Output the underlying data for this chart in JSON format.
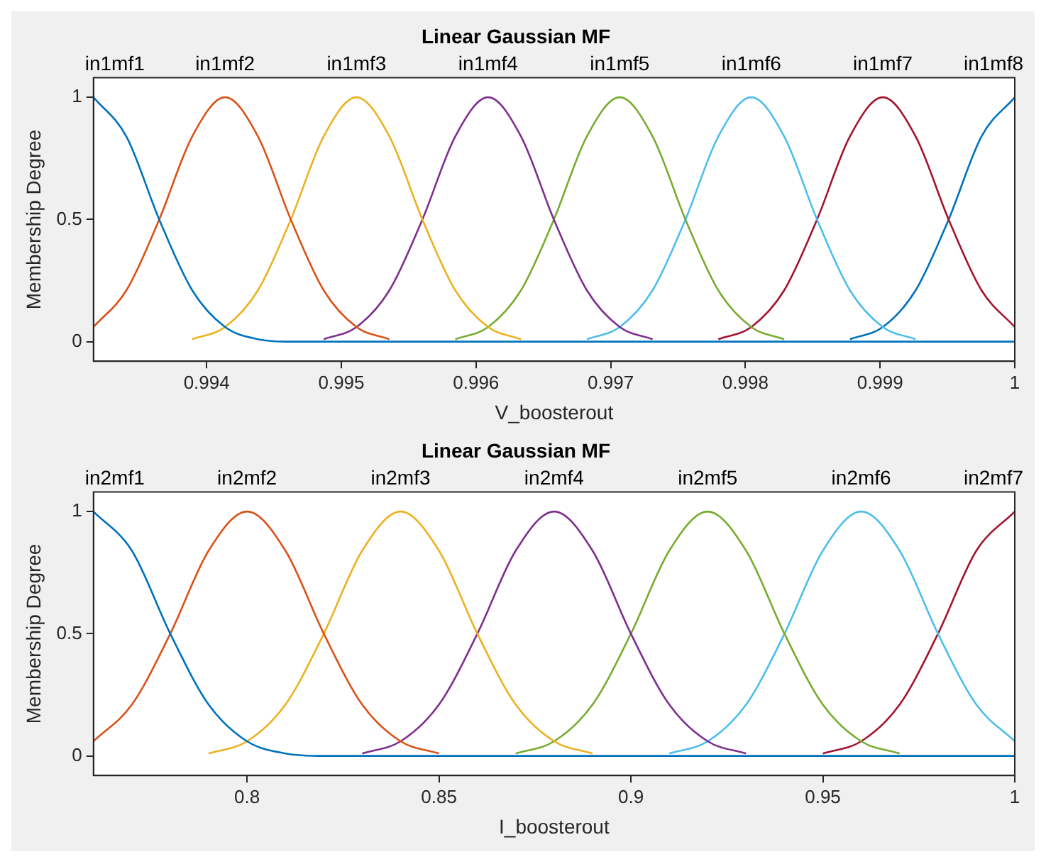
{
  "chart_data": [
    {
      "type": "line",
      "title": "Linear Gaussian MF",
      "xlabel": "V_boosterout",
      "ylabel": "Membership Degree",
      "xlim": [
        0.99316,
        1
      ],
      "xticks": [
        0.994,
        0.995,
        0.996,
        0.997,
        0.998,
        0.999,
        1
      ],
      "ylim": [
        -0.08,
        1.08
      ],
      "yticks": [
        0,
        0.5,
        1
      ],
      "grid": false,
      "legend": false,
      "marker": "none",
      "line_style": "solid",
      "x": [
        0.99316,
        0.993404,
        0.993648,
        0.993893,
        0.994137,
        0.994381,
        0.994625,
        0.994869,
        0.995113,
        0.995357,
        0.995602,
        0.995846,
        0.99609,
        0.996334,
        0.996578,
        0.996823,
        0.997067,
        0.997311,
        0.997555,
        0.997799,
        0.998044,
        0.998288,
        0.998532,
        0.998776,
        0.99902,
        0.999264,
        0.999509,
        0.999753,
        1
      ],
      "series": [
        {
          "name": "in1mf1",
          "color": "#0072bd",
          "values": [
            1,
            0.84,
            0.5,
            0.21,
            0.06,
            0.01,
            0,
            0,
            0,
            0,
            0,
            0,
            0,
            0,
            0,
            0,
            0,
            0,
            0,
            0,
            0,
            0,
            0,
            0,
            0,
            0,
            0,
            0,
            0
          ]
        },
        {
          "name": "in1mf2",
          "color": "#d95319",
          "values": [
            0.06,
            0.21,
            0.5,
            0.84,
            1,
            0.84,
            0.5,
            0.21,
            0.06,
            0.01,
            null,
            null,
            null,
            null,
            null,
            null,
            null,
            null,
            null,
            null,
            null,
            null,
            null,
            null,
            null,
            null,
            null,
            null,
            null
          ]
        },
        {
          "name": "in1mf3",
          "color": "#edb120",
          "values": [
            null,
            null,
            null,
            0.01,
            0.06,
            0.21,
            0.5,
            0.84,
            1,
            0.84,
            0.5,
            0.21,
            0.06,
            0.01,
            null,
            null,
            null,
            null,
            null,
            null,
            null,
            null,
            null,
            null,
            null,
            null,
            null,
            null,
            null
          ]
        },
        {
          "name": "in1mf4",
          "color": "#7e2f8e",
          "values": [
            null,
            null,
            null,
            null,
            null,
            null,
            null,
            0.01,
            0.06,
            0.21,
            0.5,
            0.84,
            1,
            0.84,
            0.5,
            0.21,
            0.06,
            0.01,
            null,
            null,
            null,
            null,
            null,
            null,
            null,
            null,
            null,
            null,
            null
          ]
        },
        {
          "name": "in1mf5",
          "color": "#77ac30",
          "values": [
            null,
            null,
            null,
            null,
            null,
            null,
            null,
            null,
            null,
            null,
            null,
            0.01,
            0.06,
            0.21,
            0.5,
            0.84,
            1,
            0.84,
            0.5,
            0.21,
            0.06,
            0.01,
            null,
            null,
            null,
            null,
            null,
            null,
            null
          ]
        },
        {
          "name": "in1mf6",
          "color": "#4dbeee",
          "values": [
            null,
            null,
            null,
            null,
            null,
            null,
            null,
            null,
            null,
            null,
            null,
            null,
            null,
            null,
            null,
            0.01,
            0.06,
            0.21,
            0.5,
            0.84,
            1,
            0.84,
            0.5,
            0.21,
            0.06,
            0.01,
            null,
            null,
            null
          ]
        },
        {
          "name": "in1mf7",
          "color": "#a2142f",
          "values": [
            null,
            null,
            null,
            null,
            null,
            null,
            null,
            null,
            null,
            null,
            null,
            null,
            null,
            null,
            null,
            null,
            null,
            null,
            null,
            0.01,
            0.06,
            0.21,
            0.5,
            0.84,
            1,
            0.84,
            0.5,
            0.21,
            0.06
          ]
        },
        {
          "name": "in1mf8",
          "color": "#0072bd",
          "values": [
            null,
            null,
            null,
            null,
            null,
            null,
            null,
            null,
            null,
            null,
            null,
            null,
            null,
            null,
            null,
            null,
            null,
            null,
            null,
            null,
            null,
            null,
            null,
            0.01,
            0.06,
            0.21,
            0.5,
            0.84,
            1
          ]
        }
      ]
    },
    {
      "type": "line",
      "title": "Linear Gaussian MF",
      "xlabel": "I_boosterout",
      "ylabel": "Membership Degree",
      "xlim": [
        0.76,
        1
      ],
      "xticks": [
        0.8,
        0.85,
        0.9,
        0.95,
        1
      ],
      "ylim": [
        -0.08,
        1.08
      ],
      "yticks": [
        0,
        0.5,
        1
      ],
      "grid": false,
      "legend": false,
      "marker": "none",
      "line_style": "solid",
      "x": [
        0.76,
        0.77,
        0.78,
        0.79,
        0.8,
        0.81,
        0.82,
        0.83,
        0.84,
        0.85,
        0.86,
        0.87,
        0.88,
        0.89,
        0.9,
        0.91,
        0.92,
        0.93,
        0.94,
        0.95,
        0.96,
        0.97,
        0.98,
        0.99,
        1
      ],
      "series": [
        {
          "name": "in2mf1",
          "color": "#0072bd",
          "values": [
            1,
            0.84,
            0.5,
            0.21,
            0.06,
            0.01,
            0,
            0,
            0,
            0,
            0,
            0,
            0,
            0,
            0,
            0,
            0,
            0,
            0,
            0,
            0,
            0,
            0,
            0,
            0
          ]
        },
        {
          "name": "in2mf2",
          "color": "#d95319",
          "values": [
            0.06,
            0.21,
            0.5,
            0.84,
            1,
            0.84,
            0.5,
            0.21,
            0.06,
            0.01,
            null,
            null,
            null,
            null,
            null,
            null,
            null,
            null,
            null,
            null,
            null,
            null,
            null,
            null,
            null
          ]
        },
        {
          "name": "in2mf3",
          "color": "#edb120",
          "values": [
            null,
            null,
            null,
            0.01,
            0.06,
            0.21,
            0.5,
            0.84,
            1,
            0.84,
            0.5,
            0.21,
            0.06,
            0.01,
            null,
            null,
            null,
            null,
            null,
            null,
            null,
            null,
            null,
            null,
            null
          ]
        },
        {
          "name": "in2mf4",
          "color": "#7e2f8e",
          "values": [
            null,
            null,
            null,
            null,
            null,
            null,
            null,
            0.01,
            0.06,
            0.21,
            0.5,
            0.84,
            1,
            0.84,
            0.5,
            0.21,
            0.06,
            0.01,
            null,
            null,
            null,
            null,
            null,
            null,
            null
          ]
        },
        {
          "name": "in2mf5",
          "color": "#77ac30",
          "values": [
            null,
            null,
            null,
            null,
            null,
            null,
            null,
            null,
            null,
            null,
            null,
            0.01,
            0.06,
            0.21,
            0.5,
            0.84,
            1,
            0.84,
            0.5,
            0.21,
            0.06,
            0.01,
            null,
            null,
            null
          ]
        },
        {
          "name": "in2mf6",
          "color": "#4dbeee",
          "values": [
            null,
            null,
            null,
            null,
            null,
            null,
            null,
            null,
            null,
            null,
            null,
            null,
            null,
            null,
            null,
            0.01,
            0.06,
            0.21,
            0.5,
            0.84,
            1,
            0.84,
            0.5,
            0.21,
            0.06
          ]
        },
        {
          "name": "in2mf7",
          "color": "#a2142f",
          "values": [
            null,
            null,
            null,
            null,
            null,
            null,
            null,
            null,
            null,
            null,
            null,
            null,
            null,
            null,
            null,
            null,
            null,
            null,
            null,
            0.01,
            0.06,
            0.21,
            0.5,
            0.84,
            1
          ]
        }
      ]
    }
  ]
}
